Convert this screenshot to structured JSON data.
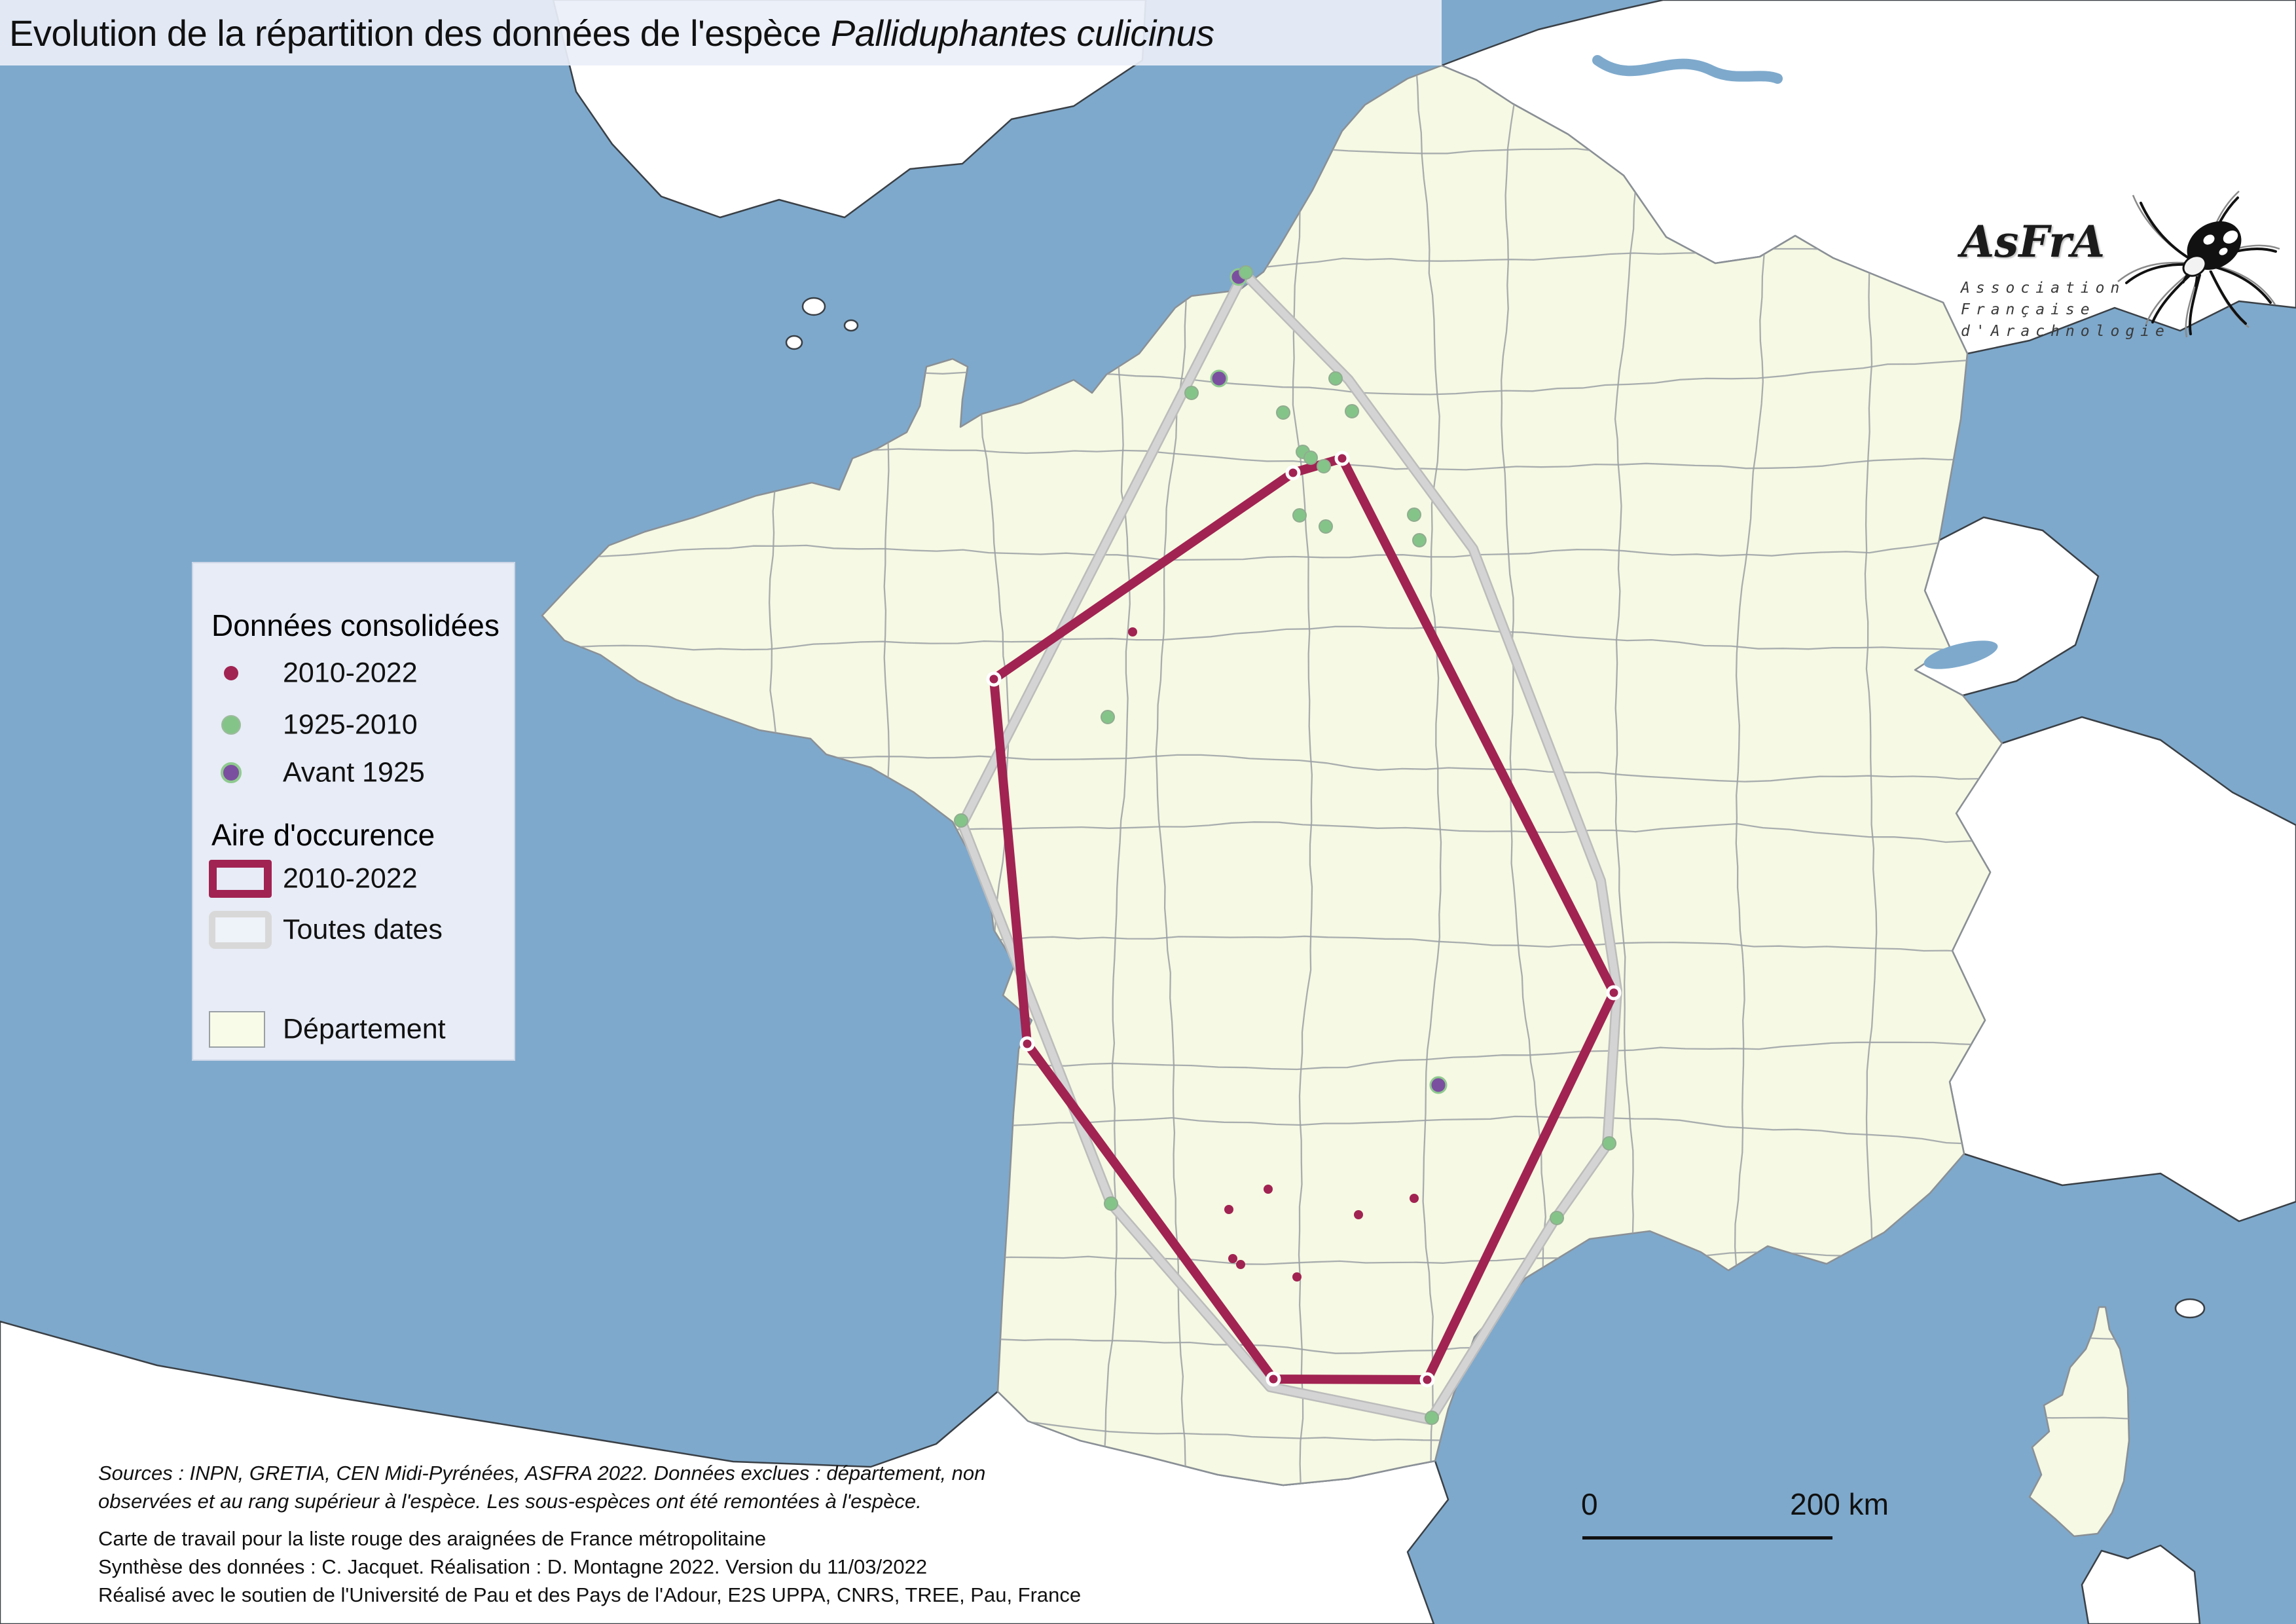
{
  "title": {
    "prefix": "Evolution de la répartition des données de l'espèce ",
    "species": "Palliduphantes culicinus"
  },
  "legend": {
    "section_points_title": "Données consolidées",
    "points": [
      {
        "label": "2010-2022"
      },
      {
        "label": "1925-2010"
      },
      {
        "label": "Avant 1925"
      }
    ],
    "section_area_title": "Aire d'occurence",
    "areas": [
      {
        "label": "2010-2022"
      },
      {
        "label": "Toutes dates"
      }
    ],
    "department_label": "Département"
  },
  "logo": {
    "acronym": "AsFrA",
    "line1": "Association",
    "line2": "Française",
    "line3": "d'Arachnologie"
  },
  "scalebar": {
    "start": "0",
    "end": "200 km"
  },
  "footer": {
    "sources_line1": "Sources : INPN, GRETIA, CEN Midi-Pyrénées, ASFRA 2022. Données exclues : département, non",
    "sources_line2": "observées et au rang supérieur à l'espèce. Les sous-espèces ont été remontées à l'espèce.",
    "credit_line1": "Carte de travail pour la liste rouge des araignées de France métropolitaine",
    "credit_line2": "Synthèse des données : C. Jacquet. Réalisation : D. Montagne 2022. Version du 11/03/2022",
    "credit_line3": "Réalisé avec le soutien de l'Université de Pau et des Pays de l'Adour, E2S UPPA, CNRS, TREE, Pau, France"
  },
  "colors": {
    "sea": "#7ea9cc",
    "department_fill": "#f6f9e3",
    "department_border": "#9aa0a5",
    "foreign_fill": "#ffffff",
    "foreign_border": "#3a4046",
    "occurrence_2010": "#a12352",
    "occurrence_all_dates": "#d4d4d4",
    "point_2010": "#a12352",
    "point_1925": "#85c489",
    "point_avant": "#7b4fa0"
  },
  "map_data": {
    "type": "map",
    "area_2010_2022": [
      [
        1975,
        722
      ],
      [
        2050,
        700
      ],
      [
        2465,
        1516
      ],
      [
        2180,
        2107
      ],
      [
        1945,
        2106
      ],
      [
        1569,
        1594
      ],
      [
        1518,
        1037
      ]
    ],
    "area_toutes_dates": [
      [
        1900,
        417
      ],
      [
        2060,
        580
      ],
      [
        2250,
        838
      ],
      [
        2445,
        1345
      ],
      [
        2470,
        1512
      ],
      [
        2455,
        1748
      ],
      [
        2375,
        1862
      ],
      [
        2185,
        2168
      ],
      [
        1940,
        2118
      ],
      [
        1697,
        1838
      ],
      [
        1470,
        1258
      ]
    ],
    "points_avant_1925": [
      [
        1892,
        423
      ],
      [
        1862,
        578
      ],
      [
        2197,
        1657
      ]
    ],
    "points_1925_2010": [
      [
        1903,
        416
      ],
      [
        1820,
        600
      ],
      [
        1960,
        630
      ],
      [
        2040,
        578
      ],
      [
        2065,
        628
      ],
      [
        1990,
        690
      ],
      [
        2002,
        699
      ],
      [
        2022,
        712
      ],
      [
        1985,
        787
      ],
      [
        2025,
        804
      ],
      [
        2160,
        786
      ],
      [
        2168,
        825
      ],
      [
        1692,
        1095
      ],
      [
        1468,
        1253
      ],
      [
        1697,
        1838
      ],
      [
        2458,
        1746
      ],
      [
        2378,
        1860
      ],
      [
        2187,
        2165
      ]
    ],
    "points_2010_2022": [
      [
        1730,
        965
      ],
      [
        1937,
        1816
      ],
      [
        1877,
        1847
      ],
      [
        2075,
        1855
      ],
      [
        1883,
        1922
      ],
      [
        1895,
        1931
      ],
      [
        1981,
        1950
      ],
      [
        2160,
        1830
      ]
    ]
  }
}
